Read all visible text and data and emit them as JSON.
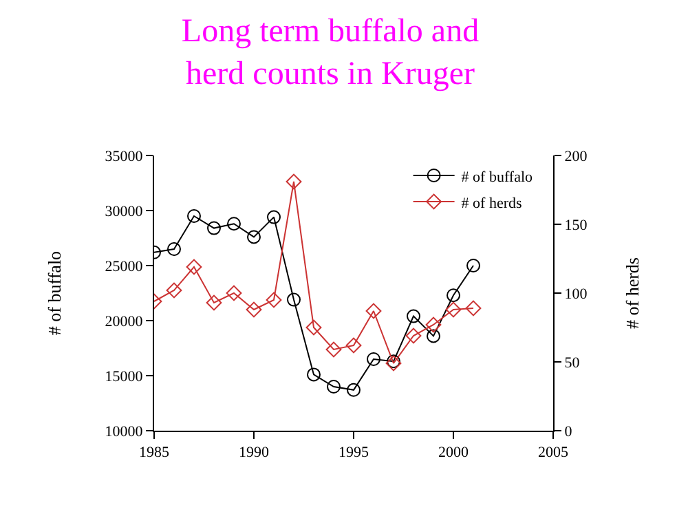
{
  "chart_data": {
    "type": "line",
    "title": "Long term buffalo and\nherd counts in Kruger",
    "xlabel": null,
    "ylabel": "# of buffalo",
    "y2label": "# of herds",
    "x": [
      1985,
      1986,
      1987,
      1988,
      1989,
      1990,
      1991,
      1992,
      1993,
      1994,
      1995,
      1996,
      1997,
      1998,
      1999,
      2000,
      2001
    ],
    "series": [
      {
        "name": "# of buffalo",
        "color": "#000000",
        "marker": "circle",
        "values": [
          26200,
          26500,
          29500,
          28400,
          28800,
          27600,
          29400,
          21900,
          15100,
          14000,
          13700,
          16500,
          16300,
          20400,
          18600,
          22300,
          25000
        ]
      },
      {
        "name": "# of herds",
        "color": "#cc3333",
        "marker": "diamond",
        "axis": "y2",
        "values": [
          94,
          102,
          119,
          93,
          100,
          88,
          95,
          181,
          75,
          59,
          62,
          87,
          49,
          69,
          77,
          88,
          89
        ]
      }
    ],
    "xlim": [
      1985,
      2005
    ],
    "xticks": [
      1985,
      1990,
      1995,
      2000,
      2005
    ],
    "ylim": [
      10000,
      35000
    ],
    "yticks": [
      10000,
      15000,
      20000,
      25000,
      30000,
      35000
    ],
    "y2lim": [
      0,
      200
    ],
    "y2ticks": [
      0,
      50,
      100,
      150,
      200
    ],
    "legend": "top right",
    "line_style": "solid"
  }
}
